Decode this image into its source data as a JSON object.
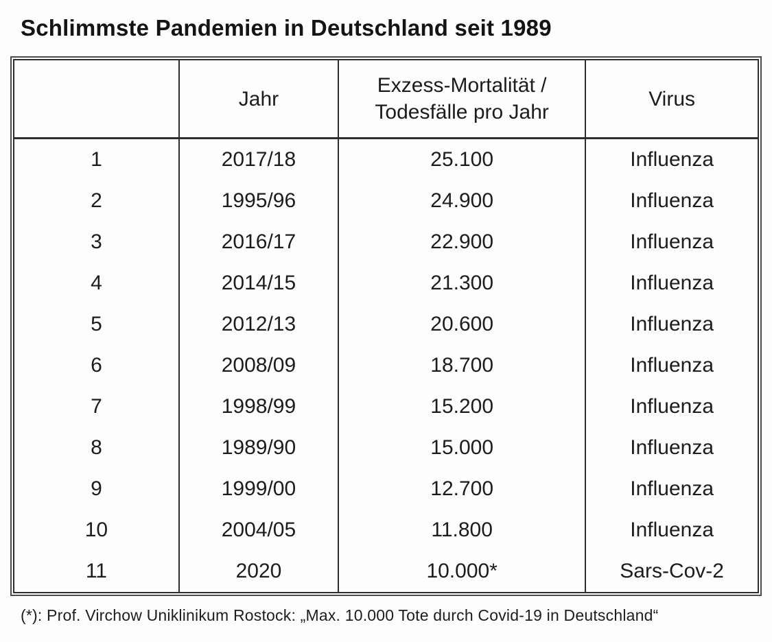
{
  "title": "Schlimmste Pandemien in Deutschland seit 1989",
  "table": {
    "headers": [
      "",
      "Jahr",
      "Exzess-Mortalität /\nTodesfälle pro Jahr",
      "Virus"
    ],
    "rows": [
      {
        "rank": "1",
        "jahr": "2017/18",
        "mortalitaet": "25.100",
        "virus": "Influenza"
      },
      {
        "rank": "2",
        "jahr": "1995/96",
        "mortalitaet": "24.900",
        "virus": "Influenza"
      },
      {
        "rank": "3",
        "jahr": "2016/17",
        "mortalitaet": "22.900",
        "virus": "Influenza"
      },
      {
        "rank": "4",
        "jahr": "2014/15",
        "mortalitaet": "21.300",
        "virus": "Influenza"
      },
      {
        "rank": "5",
        "jahr": "2012/13",
        "mortalitaet": "20.600",
        "virus": "Influenza"
      },
      {
        "rank": "6",
        "jahr": "2008/09",
        "mortalitaet": "18.700",
        "virus": "Influenza"
      },
      {
        "rank": "7",
        "jahr": "1998/99",
        "mortalitaet": "15.200",
        "virus": "Influenza"
      },
      {
        "rank": "8",
        "jahr": "1989/90",
        "mortalitaet": "15.000",
        "virus": "Influenza"
      },
      {
        "rank": "9",
        "jahr": "1999/00",
        "mortalitaet": "12.700",
        "virus": "Influenza"
      },
      {
        "rank": "10",
        "jahr": "2004/05",
        "mortalitaet": "11.800",
        "virus": "Influenza"
      },
      {
        "rank": "11",
        "jahr": "2020",
        "mortalitaet": "10.000*",
        "virus": "Sars-Cov-2"
      }
    ]
  },
  "footnote": "(*): Prof. Virchow Uniklinikum Rostock: „Max. 10.000 Tote durch Covid-19 in Deutschland“",
  "colors": {
    "text": "#1c1c1c",
    "border": "#2e2e2e",
    "background": "#fdfdfd"
  }
}
